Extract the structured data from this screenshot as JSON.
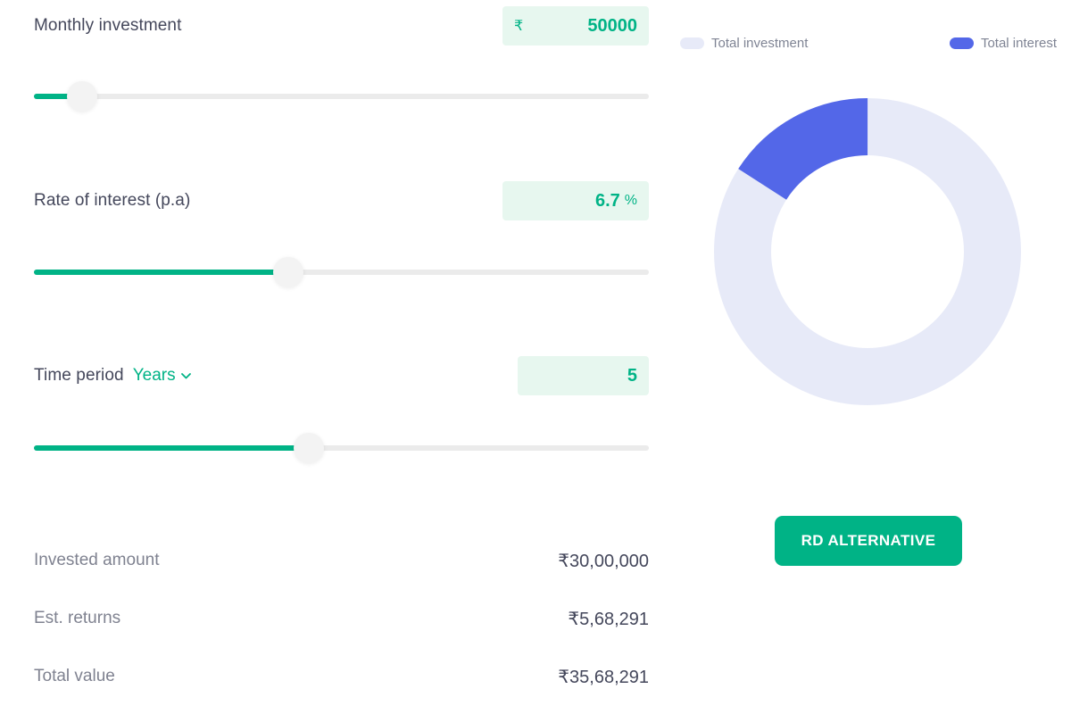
{
  "colors": {
    "accent_green": "#00b386",
    "input_bg": "#e7f7ef",
    "investment_color": "#e7eaf8",
    "interest_color": "#5367e8"
  },
  "inputs": {
    "monthly_investment": {
      "label": "Monthly investment",
      "prefix": "₹",
      "value": "50000"
    },
    "rate_of_interest": {
      "label": "Rate of interest (p.a)",
      "value": "6.7",
      "suffix": "%"
    },
    "time_period": {
      "label": "Time period",
      "unit": "Years",
      "value": "5"
    }
  },
  "summary": {
    "rows": [
      {
        "label": "Invested amount",
        "value": "₹30,00,000"
      },
      {
        "label": "Est. returns",
        "value": "₹5,68,291"
      },
      {
        "label": "Total value",
        "value": "₹35,68,291"
      }
    ]
  },
  "legend": {
    "investment": {
      "label": "Total investment"
    },
    "interest": {
      "label": "Total interest"
    }
  },
  "button": {
    "label": "RD ALTERNATIVE"
  },
  "chart_data": {
    "type": "pie",
    "donut": true,
    "start_angle": "top",
    "direction": "clockwise",
    "legend_position": "top",
    "segments": [
      {
        "label": "Total investment",
        "value": 3000000,
        "color": "#e7eaf8"
      },
      {
        "label": "Total interest",
        "value": 568291,
        "color": "#5367e8"
      }
    ]
  }
}
